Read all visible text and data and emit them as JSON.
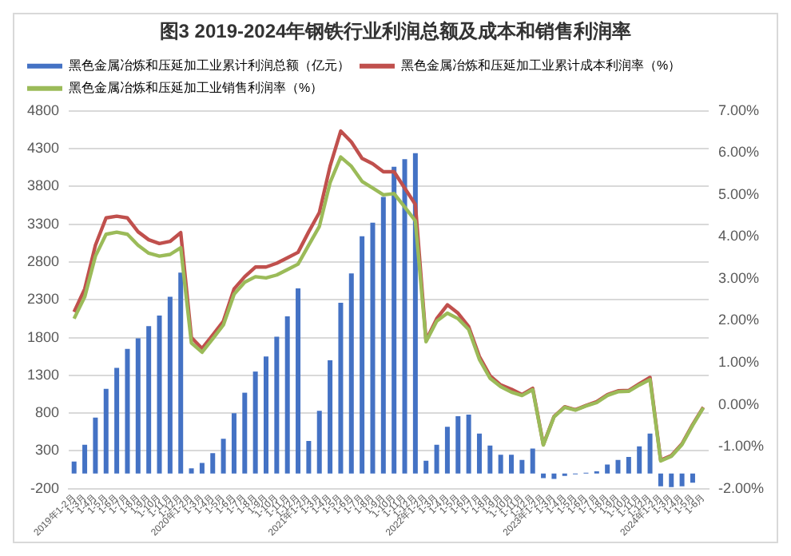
{
  "chart_data": {
    "type": "bar",
    "title": "图3 2019-2024年钢铁行业利润总额及成本和销售利润率",
    "categories": [
      "2019年1-2月",
      "1-3月",
      "1-4月",
      "1-5月",
      "1-6月",
      "1-7月",
      "1-8月",
      "1-9月",
      "1-10月",
      "1-11月",
      "1-12月",
      "2020年1-2月",
      "1-3月",
      "1-4月",
      "1-5月",
      "1-6月",
      "1-7月",
      "1-8月",
      "1-9月",
      "1-10月",
      "1-11月",
      "1-12月",
      "2021年1-2月",
      "1-3月",
      "1-4月",
      "1-5月",
      "1-6月",
      "1-7月",
      "1-8月",
      "1-9月",
      "1-10月",
      "1-11月",
      "1-12月",
      "2022年1-2月",
      "1-3月",
      "1-4月",
      "1-5月",
      "1-6月",
      "1-7月",
      "1-8月",
      "1-9月",
      "1-10月",
      "1-11月",
      "1-12月",
      "2023年1-2月",
      "1-3月",
      "1-4月",
      "1-5月",
      "1-6月",
      "1-7月",
      "1-8月",
      "1-9月",
      "1-10月",
      "1-11月",
      "1-12月",
      "2024年1-2月",
      "1-3月",
      "1-4月",
      "1-5月",
      "1-6月"
    ],
    "series": [
      {
        "name": "黑色金属冶炼和压延加工业累计利润总额（亿元）",
        "color": "#4472c4",
        "values": [
          160,
          380,
          740,
          1120,
          1400,
          1650,
          1790,
          1950,
          2090,
          2340,
          2660,
          70,
          140,
          270,
          460,
          800,
          1070,
          1350,
          1550,
          1810,
          2080,
          2450,
          430,
          830,
          1500,
          2260,
          2650,
          3140,
          3320,
          3660,
          4060,
          4160,
          4240,
          170,
          380,
          620,
          760,
          780,
          530,
          370,
          250,
          250,
          180,
          330,
          -60,
          -70,
          -30,
          -10,
          10,
          30,
          120,
          180,
          220,
          360,
          530,
          -170,
          -180,
          -170,
          -120,
          0
        ]
      },
      {
        "name": "黑色金属冶炼和压延加工业累计成本利润率（%）",
        "type": "line",
        "axis": "y2",
        "color": "#c0504d",
        "values": [
          2.21,
          2.76,
          3.8,
          4.45,
          4.49,
          4.45,
          4.12,
          3.93,
          3.84,
          3.89,
          4.1,
          1.6,
          1.34,
          1.66,
          1.99,
          2.76,
          3.05,
          3.28,
          3.28,
          3.37,
          3.5,
          3.63,
          4.12,
          4.58,
          5.68,
          6.52,
          6.26,
          5.87,
          5.74,
          5.55,
          5.55,
          5.16,
          4.77,
          1.53,
          2.05,
          2.38,
          2.18,
          1.86,
          1.15,
          0.69,
          0.47,
          0.37,
          0.24,
          0.39,
          -0.95,
          -0.28,
          -0.05,
          -0.12,
          -0.02,
          0.07,
          0.24,
          0.33,
          0.34,
          0.5,
          0.65,
          -1.32,
          -1.21,
          -0.93,
          -0.47,
          -0.06
        ]
      },
      {
        "name": "黑色金属冶炼和压延加工业销售利润率（%）",
        "type": "line",
        "axis": "y2",
        "color": "#9bbb59",
        "values": [
          2.05,
          2.57,
          3.54,
          4.06,
          4.11,
          4.06,
          3.8,
          3.61,
          3.54,
          3.58,
          3.74,
          1.47,
          1.25,
          1.57,
          1.9,
          2.63,
          2.92,
          3.05,
          3.02,
          3.09,
          3.22,
          3.35,
          3.8,
          4.25,
          5.29,
          5.9,
          5.68,
          5.32,
          5.16,
          5.0,
          5.03,
          4.71,
          4.38,
          1.5,
          1.99,
          2.18,
          2.05,
          1.79,
          1.08,
          0.63,
          0.43,
          0.3,
          0.22,
          0.36,
          -0.96,
          -0.29,
          -0.06,
          -0.13,
          -0.03,
          0.05,
          0.22,
          0.31,
          0.32,
          0.47,
          0.6,
          -1.34,
          -1.23,
          -0.95,
          -0.49,
          -0.07
        ]
      }
    ],
    "ylim": [
      -200,
      4800
    ],
    "yticks": [
      -200,
      300,
      800,
      1300,
      1800,
      2300,
      2800,
      3300,
      3800,
      4300,
      4800
    ],
    "y2lim": [
      -2,
      7
    ],
    "y2ticks": [
      {
        "value": -2,
        "label": "-2.00%"
      },
      {
        "value": -1,
        "label": "-1.00%"
      },
      {
        "value": 0,
        "label": "0.00%"
      },
      {
        "value": 1,
        "label": "1.00%"
      },
      {
        "value": 2,
        "label": "2.00%"
      },
      {
        "value": 3,
        "label": "3.00%"
      },
      {
        "value": 4,
        "label": "4.00%"
      },
      {
        "value": 5,
        "label": "5.00%"
      },
      {
        "value": 6,
        "label": "6.00%"
      },
      {
        "value": 7,
        "label": "7.00%"
      }
    ],
    "grid": "y",
    "legend": "top",
    "marker": "none"
  }
}
